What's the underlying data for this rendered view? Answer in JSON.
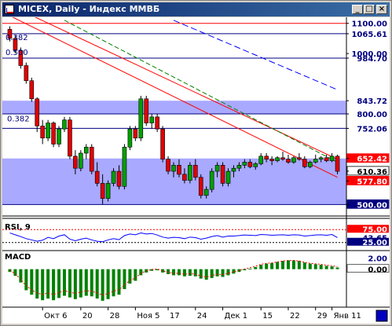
{
  "window": {
    "title": "MICEX, Daily - Индекс ММВБ",
    "minimize_glyph": "_",
    "maximize_glyph": "□",
    "close_glyph": "×"
  },
  "price_panel": {
    "price_labels": [
      "1100.00",
      "1065.61",
      "1000.00",
      "984.70",
      "843.72",
      "800.00",
      "752.06",
      "652.42",
      "610.36",
      "577.80",
      "500.00"
    ],
    "fib_labels": [
      "0.382",
      "0.500",
      "0.382"
    ],
    "horizontal_lines": [
      {
        "value": 1100,
        "color": "#ff0000"
      },
      {
        "value": 1065.61,
        "color": "#000080"
      },
      {
        "value": 984.7,
        "color": "#000080"
      },
      {
        "value": 800,
        "color": "#000080"
      },
      {
        "value": 752.06,
        "color": "#000080"
      },
      {
        "value": 500,
        "color": "#000080"
      }
    ],
    "bands": [
      {
        "from": 800,
        "to": 843.72,
        "color": "#8c8cff"
      },
      {
        "from": 500,
        "to": 652.42,
        "color": "#8c8cff"
      }
    ],
    "price_tags": [
      {
        "value": 652.42,
        "color": "#ff0000"
      },
      {
        "value": 610.36,
        "color": "#ffffff"
      },
      {
        "value": 577.8,
        "color": "#ff0000"
      },
      {
        "value": 500,
        "color": "#000080"
      }
    ]
  },
  "rsi_panel": {
    "label": "RSI, 9",
    "levels": [
      "75.00",
      "43.65",
      "25.00"
    ]
  },
  "macd_panel": {
    "label": "MACD",
    "levels": [
      "2.00",
      "0.00"
    ]
  },
  "time_axis": {
    "labels": [
      "Окт 6",
      "20",
      "28",
      "Ноя 5",
      "17",
      "24",
      "Дек 1",
      "15",
      "22",
      "29",
      "Янв 11"
    ]
  },
  "colors": {
    "bull": "#00a000",
    "bear": "#e00000",
    "trend_red": "#ff0000",
    "trend_green": "#008000",
    "trend_blue": "#0000ff",
    "band": "#8c8cff",
    "axis_text": "#000080"
  },
  "chart_data": {
    "type": "candlestick",
    "x": [
      "Окт 6",
      "20",
      "28",
      "Ноя 5",
      "17",
      "24",
      "Дек 1",
      "15",
      "22",
      "29",
      "Янв 11"
    ],
    "series": [
      {
        "values": [
          [
            1080,
            1090,
            1040,
            1050
          ],
          [
            1050,
            1060,
            1000,
            1010
          ],
          [
            1010,
            1020,
            950,
            960
          ],
          [
            960,
            970,
            900,
            910
          ],
          [
            910,
            920,
            840,
            850
          ],
          [
            850,
            855,
            740,
            760
          ],
          [
            760,
            780,
            700,
            720
          ],
          [
            720,
            780,
            710,
            770
          ],
          [
            770,
            775,
            690,
            700
          ],
          [
            700,
            760,
            690,
            750
          ],
          [
            750,
            790,
            740,
            780
          ],
          [
            780,
            790,
            650,
            660
          ],
          [
            660,
            680,
            600,
            620
          ],
          [
            620,
            680,
            610,
            670
          ],
          [
            670,
            700,
            650,
            690
          ],
          [
            690,
            700,
            600,
            610
          ],
          [
            610,
            640,
            560,
            570
          ],
          [
            570,
            600,
            500,
            520
          ],
          [
            520,
            580,
            510,
            570
          ],
          [
            570,
            620,
            560,
            610
          ],
          [
            610,
            630,
            550,
            560
          ],
          [
            560,
            700,
            550,
            690
          ],
          [
            690,
            760,
            680,
            750
          ],
          [
            750,
            760,
            710,
            720
          ],
          [
            720,
            860,
            710,
            850
          ],
          [
            850,
            860,
            760,
            770
          ],
          [
            770,
            800,
            750,
            790
          ],
          [
            790,
            800,
            740,
            750
          ],
          [
            750,
            760,
            640,
            650
          ],
          [
            650,
            660,
            600,
            610
          ],
          [
            610,
            640,
            590,
            630
          ],
          [
            630,
            650,
            590,
            600
          ],
          [
            600,
            620,
            570,
            580
          ],
          [
            580,
            640,
            570,
            630
          ],
          [
            630,
            650,
            580,
            590
          ],
          [
            590,
            600,
            520,
            530
          ],
          [
            530,
            560,
            520,
            550
          ],
          [
            550,
            620,
            540,
            610
          ],
          [
            610,
            640,
            590,
            630
          ],
          [
            630,
            640,
            560,
            570
          ],
          [
            570,
            620,
            560,
            610
          ],
          [
            610,
            630,
            590,
            620
          ],
          [
            620,
            640,
            610,
            630
          ],
          [
            630,
            650,
            620,
            640
          ],
          [
            640,
            650,
            620,
            625
          ],
          [
            625,
            640,
            615,
            635
          ],
          [
            635,
            670,
            630,
            660
          ],
          [
            660,
            670,
            640,
            650
          ],
          [
            650,
            660,
            630,
            645
          ],
          [
            645,
            660,
            640,
            655
          ],
          [
            655,
            675,
            645,
            650
          ],
          [
            650,
            665,
            635,
            640
          ],
          [
            640,
            660,
            635,
            655
          ],
          [
            655,
            670,
            645,
            650
          ],
          [
            650,
            660,
            620,
            625
          ],
          [
            625,
            645,
            620,
            640
          ],
          [
            640,
            665,
            635,
            650
          ],
          [
            650,
            660,
            640,
            655
          ],
          [
            655,
            665,
            640,
            645
          ],
          [
            645,
            670,
            640,
            660
          ],
          [
            660,
            665,
            600,
            610
          ]
        ]
      }
    ],
    "ylim": [
      480,
      1120
    ],
    "rsi": [
      62,
      55,
      48,
      40,
      35,
      30,
      34,
      45,
      40,
      50,
      55,
      38,
      32,
      38,
      42,
      35,
      30,
      28,
      35,
      40,
      36,
      52,
      58,
      55,
      62,
      58,
      60,
      54,
      46,
      42,
      45,
      44,
      40,
      46,
      44,
      38,
      42,
      48,
      52,
      46,
      50,
      50,
      52,
      54,
      53,
      52,
      56,
      55,
      53,
      54,
      55,
      53,
      55,
      54,
      50,
      52,
      54,
      55,
      53,
      56,
      44
    ],
    "rsi_ylim": [
      0,
      100
    ],
    "macd": [
      -0.5,
      -1.2,
      -2.4,
      -3.8,
      -4.6,
      -5.3,
      -5.6,
      -5.3,
      -5.6,
      -5.2,
      -4.8,
      -5.1,
      -5.4,
      -5.1,
      -4.8,
      -4.9,
      -5.3,
      -5.7,
      -5.4,
      -4.9,
      -4.6,
      -3.6,
      -2.6,
      -2.1,
      -1.1,
      -0.6,
      -0.3,
      -0.2,
      -0.6,
      -0.9,
      -1.1,
      -1.1,
      -1.3,
      -1.2,
      -1.3,
      -1.7,
      -1.9,
      -1.6,
      -1.3,
      -1.4,
      -1.1,
      -0.8,
      -0.5,
      -0.2,
      0.1,
      0.4,
      0.8,
      1.0,
      1.1,
      1.3,
      1.5,
      1.6,
      1.6,
      1.5,
      1.2,
      1.0,
      0.9,
      0.8,
      0.6,
      0.5,
      0.3
    ],
    "macd_ylim": [
      -6,
      2.5
    ]
  }
}
